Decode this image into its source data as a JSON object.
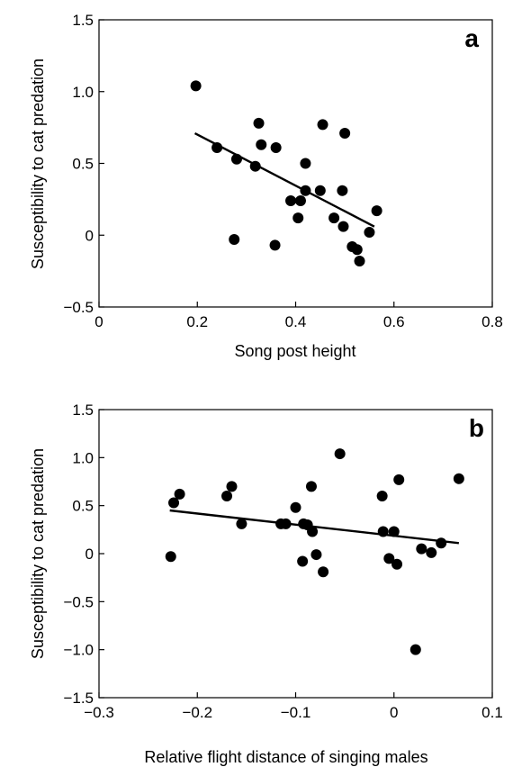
{
  "chart_data": [
    {
      "type": "scatter",
      "panel_label": "a",
      "xlabel": "Song post height",
      "ylabel": "Susceptibility to cat predation",
      "xlim": [
        0,
        0.8
      ],
      "ylim": [
        -0.5,
        1.5
      ],
      "xticks": [
        0,
        0.2,
        0.4,
        0.6,
        0.8
      ],
      "xtick_labels": [
        "0",
        "0.2",
        "0.4",
        "0.6",
        "0.8"
      ],
      "yticks": [
        -0.5,
        0,
        0.5,
        1.0,
        1.5
      ],
      "ytick_labels": [
        "−0.5",
        "0",
        "0.5",
        "1.0",
        "1.5"
      ],
      "grid": false,
      "points": [
        {
          "x": 0.197,
          "y": 1.04
        },
        {
          "x": 0.24,
          "y": 0.61
        },
        {
          "x": 0.28,
          "y": 0.53
        },
        {
          "x": 0.275,
          "y": -0.03
        },
        {
          "x": 0.318,
          "y": 0.48
        },
        {
          "x": 0.325,
          "y": 0.78
        },
        {
          "x": 0.33,
          "y": 0.63
        },
        {
          "x": 0.36,
          "y": 0.61
        },
        {
          "x": 0.358,
          "y": -0.07
        },
        {
          "x": 0.39,
          "y": 0.24
        },
        {
          "x": 0.405,
          "y": 0.12
        },
        {
          "x": 0.41,
          "y": 0.24
        },
        {
          "x": 0.42,
          "y": 0.31
        },
        {
          "x": 0.42,
          "y": 0.5
        },
        {
          "x": 0.45,
          "y": 0.31
        },
        {
          "x": 0.455,
          "y": 0.77
        },
        {
          "x": 0.478,
          "y": 0.12
        },
        {
          "x": 0.495,
          "y": 0.31
        },
        {
          "x": 0.497,
          "y": 0.06
        },
        {
          "x": 0.5,
          "y": 0.71
        },
        {
          "x": 0.515,
          "y": -0.08
        },
        {
          "x": 0.525,
          "y": -0.1
        },
        {
          "x": 0.53,
          "y": -0.18
        },
        {
          "x": 0.55,
          "y": 0.02
        },
        {
          "x": 0.565,
          "y": 0.17
        }
      ],
      "fit_line": {
        "x": [
          0.195,
          0.56
        ],
        "y": [
          0.71,
          0.06
        ]
      }
    },
    {
      "type": "scatter",
      "panel_label": "b",
      "xlabel": "Relative flight distance of singing males",
      "ylabel": "Susceptibility to cat predation",
      "xlim": [
        -0.3,
        0.1
      ],
      "ylim": [
        -1.5,
        1.5
      ],
      "xticks": [
        -0.3,
        -0.2,
        -0.1,
        0,
        0.1
      ],
      "xtick_labels": [
        "−0.3",
        "−0.2",
        "−0.1",
        "0",
        "0.1"
      ],
      "yticks": [
        -1.5,
        -1.0,
        -0.5,
        0,
        0.5,
        1.0,
        1.5
      ],
      "ytick_labels": [
        "−1.5",
        "−1.0",
        "−0.5",
        "0",
        "0.5",
        "1.0",
        "1.5"
      ],
      "grid": false,
      "points": [
        {
          "x": -0.227,
          "y": -0.03
        },
        {
          "x": -0.224,
          "y": 0.53
        },
        {
          "x": -0.218,
          "y": 0.62
        },
        {
          "x": -0.17,
          "y": 0.6
        },
        {
          "x": -0.165,
          "y": 0.7
        },
        {
          "x": -0.155,
          "y": 0.31
        },
        {
          "x": -0.115,
          "y": 0.31
        },
        {
          "x": -0.11,
          "y": 0.31
        },
        {
          "x": -0.1,
          "y": 0.48
        },
        {
          "x": -0.093,
          "y": -0.08
        },
        {
          "x": -0.092,
          "y": 0.31
        },
        {
          "x": -0.088,
          "y": 0.3
        },
        {
          "x": -0.084,
          "y": 0.7
        },
        {
          "x": -0.083,
          "y": 0.23
        },
        {
          "x": -0.079,
          "y": -0.01
        },
        {
          "x": -0.072,
          "y": -0.19
        },
        {
          "x": -0.055,
          "y": 1.04
        },
        {
          "x": -0.012,
          "y": 0.6
        },
        {
          "x": -0.011,
          "y": 0.23
        },
        {
          "x": -0.005,
          "y": -0.05
        },
        {
          "x": 0.0,
          "y": 0.23
        },
        {
          "x": 0.003,
          "y": -0.11
        },
        {
          "x": 0.005,
          "y": 0.77
        },
        {
          "x": 0.022,
          "y": -1.0
        },
        {
          "x": 0.028,
          "y": 0.05
        },
        {
          "x": 0.038,
          "y": 0.01
        },
        {
          "x": 0.048,
          "y": 0.11
        },
        {
          "x": 0.066,
          "y": 0.78
        }
      ],
      "fit_line": {
        "x": [
          -0.228,
          0.066
        ],
        "y": [
          0.45,
          0.11
        ]
      }
    }
  ]
}
